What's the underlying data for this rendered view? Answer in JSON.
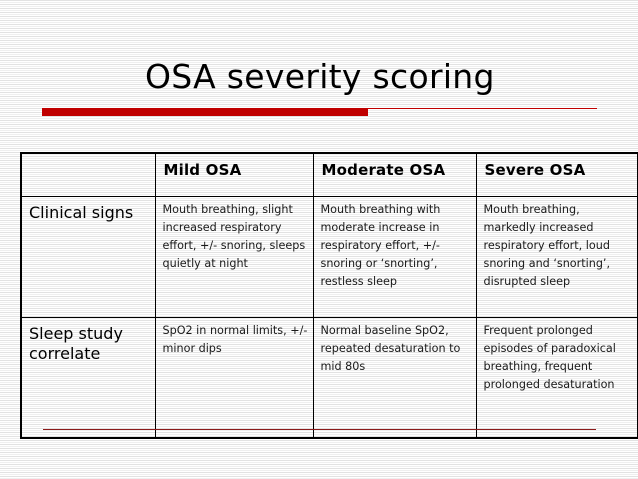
{
  "slide": {
    "title": "OSA severity scoring",
    "accent_color": "#c00000"
  },
  "table": {
    "headers": [
      "",
      "Mild OSA",
      "Moderate OSA",
      "Severe OSA"
    ],
    "rows": [
      {
        "label": "Clinical signs",
        "cells": [
          "Mouth breathing, slight increased respiratory effort, +/- snoring, sleeps quietly at night",
          "Mouth breathing with moderate increase in respiratory effort, +/- snoring or ‘snorting’, restless sleep",
          "Mouth breathing, markedly increased respiratory effort, loud snoring and ‘snorting’, disrupted sleep"
        ]
      },
      {
        "label": "Sleep study correlate",
        "cells": [
          "SpO2 in normal limits, +/- minor dips",
          "Normal baseline SpO2, repeated desaturation to mid 80s",
          "Frequent prolonged episodes of paradoxical breathing, frequent prolonged desaturation"
        ]
      }
    ]
  }
}
